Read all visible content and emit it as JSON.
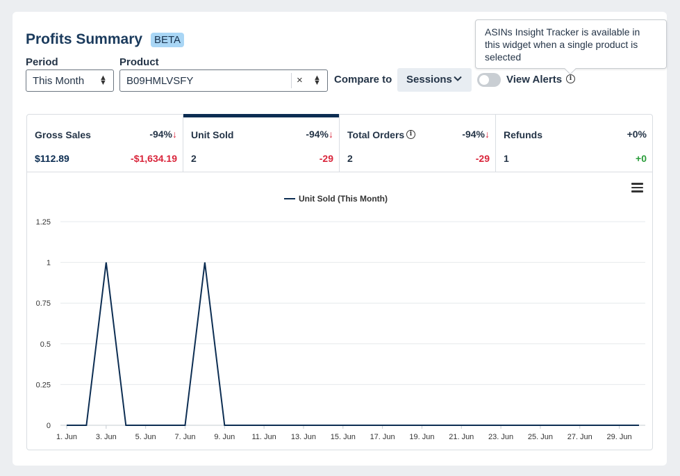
{
  "header": {
    "title": "Profits Summary",
    "badge": "BETA"
  },
  "filters": {
    "period_label": "Period",
    "period_value": "This Month",
    "product_label": "Product",
    "product_value": "B09HMLVSFY",
    "clear_glyph": "×",
    "compare_label": "Compare to",
    "compare_value": "Sessions",
    "alerts_label": "View Alerts"
  },
  "tooltip": {
    "text": "ASINs Insight Tracker is available in this widget when a single product is selected"
  },
  "metrics": [
    {
      "label": "Gross Sales",
      "pct": "-94%",
      "arrow": "↓",
      "value": "$112.89",
      "diff": "-$1,634.19"
    },
    {
      "label": "Unit Sold",
      "pct": "-94%",
      "arrow": "↓",
      "value": "2",
      "diff": "-29"
    },
    {
      "label": "Total Orders",
      "pct": "-94%",
      "arrow": "↓",
      "value": "2",
      "diff": "-29"
    },
    {
      "label": "Refunds",
      "pct": "+0%",
      "arrow": "",
      "value": "1",
      "diff": "+0"
    }
  ],
  "colors": {
    "series": "#0c2d52",
    "down": "#d9253b",
    "up": "#2a9d3a"
  },
  "chart_data": {
    "type": "line",
    "legend": "Unit Sold (This Month)",
    "legend_position": "top-center",
    "ylim": [
      0,
      1.25
    ],
    "y_ticks": [
      "0",
      "0.25",
      "0.5",
      "0.75",
      "1",
      "1.25"
    ],
    "x_tick_labels": [
      "1. Jun",
      "3. Jun",
      "5. Jun",
      "7. Jun",
      "9. Jun",
      "11. Jun",
      "13. Jun",
      "15. Jun",
      "17. Jun",
      "19. Jun",
      "21. Jun",
      "23. Jun",
      "25. Jun",
      "27. Jun",
      "29. Jun"
    ],
    "series": [
      {
        "name": "Unit Sold (This Month)",
        "x": [
          1,
          2,
          3,
          4,
          5,
          6,
          7,
          8,
          9,
          10,
          11,
          12,
          13,
          14,
          15,
          16,
          17,
          18,
          19,
          20,
          21,
          22,
          23,
          24,
          25,
          26,
          27,
          28,
          29,
          30
        ],
        "values": [
          0,
          0,
          1,
          0,
          0,
          0,
          0,
          1,
          0,
          0,
          0,
          0,
          0,
          0,
          0,
          0,
          0,
          0,
          0,
          0,
          0,
          0,
          0,
          0,
          0,
          0,
          0,
          0,
          0,
          0
        ]
      }
    ],
    "grid": true
  }
}
